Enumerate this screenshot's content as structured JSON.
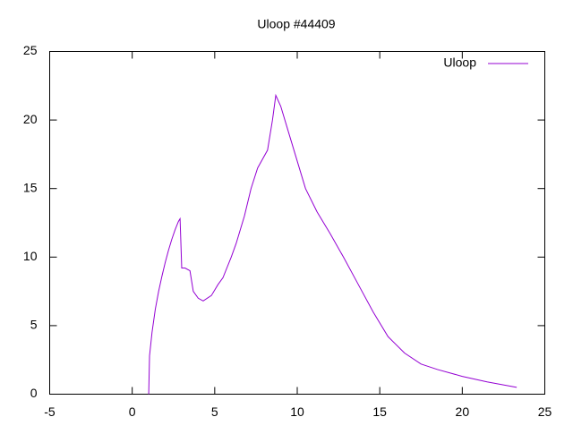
{
  "chart_data": {
    "type": "line",
    "title": "Uloop #44409",
    "x": [
      1.0,
      1.05,
      1.2,
      1.4,
      1.6,
      1.8,
      2.0,
      2.2,
      2.4,
      2.6,
      2.8,
      2.9,
      3.0,
      3.2,
      3.5,
      3.7,
      4.0,
      4.3,
      4.8,
      5.2,
      5.5,
      6.0,
      6.3,
      6.8,
      7.2,
      7.6,
      8.2,
      8.5,
      8.7,
      9.0,
      9.5,
      10.0,
      10.5,
      11.2,
      12.0,
      12.8,
      13.7,
      14.6,
      15.5,
      16.5,
      17.5,
      18.5,
      20.0,
      21.5,
      23.3
    ],
    "series": [
      {
        "name": "Uloop",
        "color": "#9400d3",
        "values": [
          0,
          2.8,
          4.5,
          6.2,
          7.5,
          8.6,
          9.6,
          10.5,
          11.3,
          12.0,
          12.6,
          12.8,
          9.2,
          9.2,
          9.0,
          7.5,
          7.0,
          6.8,
          7.2,
          8.0,
          8.5,
          10.0,
          11.0,
          13.0,
          15.0,
          16.5,
          17.8,
          20.0,
          21.8,
          21.0,
          19.0,
          17.0,
          15.0,
          13.3,
          11.7,
          10.0,
          8.0,
          6.0,
          4.2,
          3.0,
          2.2,
          1.8,
          1.3,
          0.9,
          0.5
        ]
      }
    ],
    "xlim": [
      -5,
      25
    ],
    "ylim": [
      0,
      25
    ],
    "xticks": [
      -5,
      0,
      5,
      10,
      15,
      20,
      25
    ],
    "yticks": [
      0,
      5,
      10,
      15,
      20,
      25
    ],
    "legend": "top-right"
  }
}
